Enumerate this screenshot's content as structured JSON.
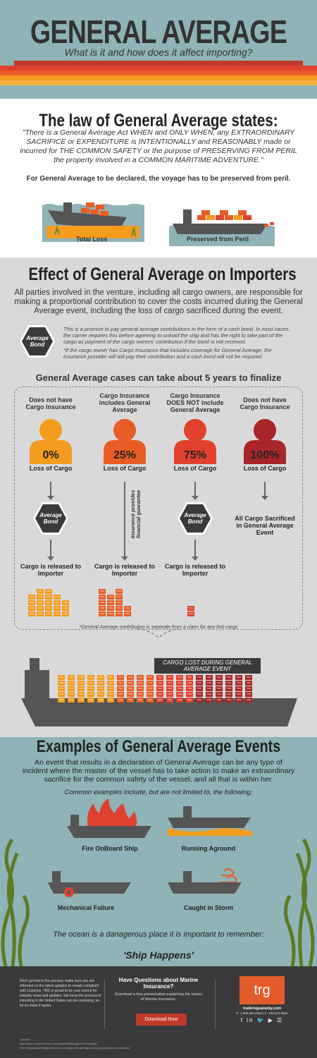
{
  "header": {
    "title": "GENERAL AVERAGE",
    "subtitle": "What is it and how does it affect importing?"
  },
  "law": {
    "title": "The law of General Average states:",
    "quote": "\"There is a General Average Act WHEN and ONLY WHEN, any EXTRAORDINARY SACRIFICE or EXPENDITURE is INTENTIONALLY and REASONABLY made or incurred for THE COMMON SAFETY or the purpose of PRESERVING FROM PERIL the property involved in a COMMON MARITIME ADVENTURE.\"",
    "note": "For General Average to be declared, the voyage has to be preserved from peril.",
    "total_loss": "Total Loss",
    "preserved": "Preserved from Peril"
  },
  "effect": {
    "title": "Effect of General Average on Importers",
    "intro": "All parties involved in the venture, including all cargo owners, are responsible for making a proportional contribution to cover the costs incurred during the General Average event, including the loss of cargo sacrificed during the event.",
    "bond_label": "Average Bond",
    "bond_text1": "This is a promise to pay general average contributions in the form of a cash bond. In most cases, the carrier requires this before agreeing to unload the ship and has the right to take part of the cargo as payment of the cargo owners' contribution if the bond is not received.",
    "bond_text2": "*If the cargo owner has Cargo Insurance that includes coverage for General Average, the insurance provider will will pay their contribution and a cash bond will not be required.",
    "cases_title": "General Average cases can take about 5 years to finalize",
    "columns": [
      {
        "head": "Does not have Cargo Insurance",
        "pct": "0%",
        "loss": "Loss of Cargo",
        "result": "Cargo is released to Importer"
      },
      {
        "head": "Cargo Insurance includes General Average",
        "pct": "25%",
        "loss": "Loss of Cargo",
        "result": "Cargo is released to Importer"
      },
      {
        "head": "Cargo Insurance DOES NOT include General Average",
        "pct": "75%",
        "loss": "Loss of Cargo",
        "result": "Cargo is released to Importer"
      },
      {
        "head": "Does not have Cargo Insurance",
        "pct": "100%",
        "loss": "Loss of Cargo",
        "result": "All Cargo Sacrificed in General Average Event"
      }
    ],
    "insurance_note": "Insurance provides financial guarantee",
    "footnote": "*General Average contribution is seperate from a claim for any lost cargo",
    "cargo_lost": "CARGO LOST DURING GENERAL AVERAGE EVENT",
    "crate_label": "TRG",
    "colors": {
      "c1": "#f39c1e",
      "c2": "#e85d25",
      "c3": "#e0412f",
      "c4": "#a8262a"
    }
  },
  "examples": {
    "title": "Examples of General Average Events",
    "intro": "An event that results in a declaration of General Average can be any type of incident where the master of the vessel has to take action to make an extraordinary sacrifice for the common safety of the vessel, and all that is within her.",
    "common": "Common examples include, but are not limited to, the following:",
    "items": [
      "Fire OnBoard Ship",
      "Running Aground",
      "Mechanical Failure",
      "Caught in Storm"
    ],
    "ocean": "The ocean is a danagerous place it is important to remember:",
    "ship_happens": "'Ship Happens'"
  },
  "footer": {
    "left": "Don't get lost in the process, make sure you are informed on the latest updates to remain compliant with Customs. TRG is proud to be your source for industry news and updates. We know the process of importing in the United States can be confusing, so let us make it easier.",
    "q_title": "Have Questions about Marine Insurance?",
    "q_text": "Download a free presentation explaining the basics of Marine Insurance.",
    "download": "Download Now",
    "logo": "trg",
    "site": "tradersguaranty.com",
    "phone": "P: 1.800.685.6062 | F: 406.922.6501",
    "social": "f in 🐦 ▶ ☰",
    "sources_label": "Sources:",
    "source1": "http://www.customscourt.com/understanding-general-average/",
    "source2": "http://shippingandfreightresources.com/general-average-average-principles-introduction/"
  }
}
